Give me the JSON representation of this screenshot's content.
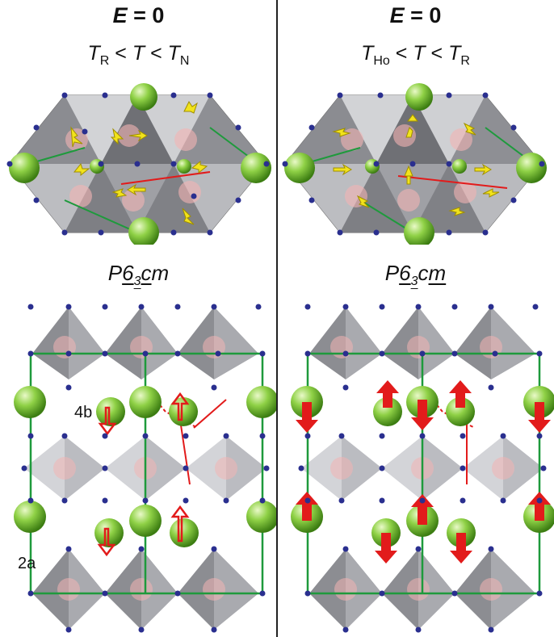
{
  "left": {
    "field_var": "E",
    "field_val": " = 0",
    "temp_parts": [
      "T",
      "R",
      " < ",
      "T",
      " < ",
      "T",
      "N"
    ],
    "group_parts": [
      "P",
      "6",
      "3",
      "c",
      "m"
    ],
    "label_4b": "4b",
    "label_2a": "2a"
  },
  "right": {
    "field_var": "E",
    "field_val": " = 0",
    "temp_parts": [
      "T",
      "Ho",
      " < ",
      "T",
      " < ",
      "T",
      "R"
    ],
    "group_parts": [
      "P",
      "6",
      "3",
      "c",
      "m"
    ]
  },
  "colors": {
    "polyhedron": "#9a9ba0",
    "polyhedron_light": "#c7c8cc",
    "sphere": "#7cc43a",
    "node": "#2a2f8f",
    "spin_top": "#f2e31c",
    "spin_side": "#e21b1b",
    "bond": "#1e9a3c"
  }
}
